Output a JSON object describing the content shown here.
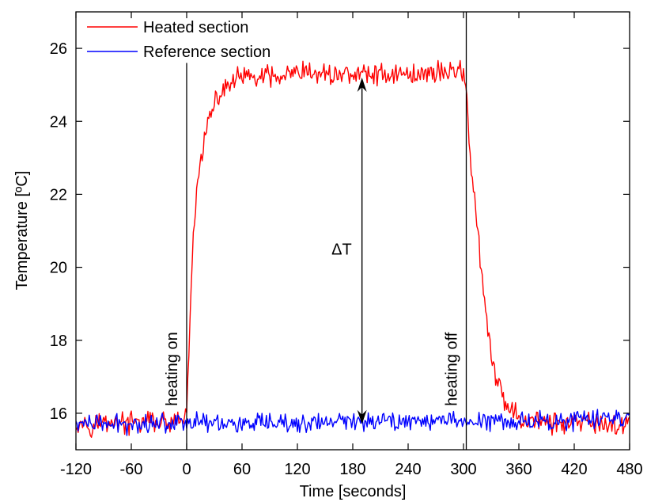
{
  "chart_data": {
    "type": "line",
    "title": "",
    "xlabel": "Time [seconds]",
    "ylabel": "Temperature [ºC]",
    "xlim": [
      -120,
      480
    ],
    "ylim": [
      15,
      27
    ],
    "xticks": [
      "-120",
      "-60",
      "0",
      "60",
      "120",
      "180",
      "240",
      "300",
      "360",
      "420",
      "480"
    ],
    "yticks": [
      "16",
      "18",
      "20",
      "22",
      "24",
      "26"
    ],
    "grid": false,
    "legend_position": "top-left",
    "series": [
      {
        "name": "Heated section",
        "color": "#ff0000",
        "points": [
          [
            -120,
            15.8
          ],
          [
            -100,
            15.7
          ],
          [
            -80,
            15.8
          ],
          [
            -60,
            15.7
          ],
          [
            -40,
            15.8
          ],
          [
            -20,
            15.7
          ],
          [
            -2,
            15.8
          ],
          [
            0,
            16.1
          ],
          [
            2,
            17.5
          ],
          [
            5,
            19.5
          ],
          [
            8,
            21.0
          ],
          [
            10,
            21.8
          ],
          [
            13,
            22.5
          ],
          [
            16,
            23.1
          ],
          [
            20,
            23.6
          ],
          [
            25,
            24.1
          ],
          [
            30,
            24.4
          ],
          [
            35,
            24.7
          ],
          [
            40,
            24.9
          ],
          [
            50,
            25.1
          ],
          [
            60,
            25.2
          ],
          [
            80,
            25.2
          ],
          [
            100,
            25.2
          ],
          [
            120,
            25.3
          ],
          [
            140,
            25.3
          ],
          [
            160,
            25.3
          ],
          [
            180,
            25.3
          ],
          [
            200,
            25.3
          ],
          [
            220,
            25.3
          ],
          [
            240,
            25.3
          ],
          [
            260,
            25.3
          ],
          [
            280,
            25.4
          ],
          [
            300,
            25.4
          ],
          [
            303,
            25.0
          ],
          [
            305,
            24.0
          ],
          [
            308,
            22.8
          ],
          [
            312,
            21.8
          ],
          [
            315,
            21.0
          ],
          [
            318,
            20.2
          ],
          [
            322,
            19.2
          ],
          [
            326,
            18.3
          ],
          [
            330,
            17.6
          ],
          [
            335,
            17.0
          ],
          [
            340,
            16.6
          ],
          [
            345,
            16.3
          ],
          [
            350,
            16.1
          ],
          [
            360,
            15.9
          ],
          [
            380,
            15.8
          ],
          [
            400,
            15.7
          ],
          [
            420,
            15.7
          ],
          [
            440,
            15.7
          ],
          [
            460,
            15.7
          ],
          [
            480,
            15.7
          ]
        ]
      },
      {
        "name": "Reference section",
        "color": "#0000ff",
        "points": [
          [
            -120,
            15.7
          ],
          [
            -60,
            15.7
          ],
          [
            0,
            15.8
          ],
          [
            60,
            15.7
          ],
          [
            120,
            15.7
          ],
          [
            180,
            15.8
          ],
          [
            240,
            15.8
          ],
          [
            300,
            15.8
          ],
          [
            360,
            15.8
          ],
          [
            420,
            15.8
          ],
          [
            480,
            15.9
          ]
        ]
      }
    ],
    "vlines": [
      {
        "x": 0,
        "label": "heating on"
      },
      {
        "x": 303,
        "label": "heating off"
      }
    ],
    "arrow": {
      "x": 190,
      "y_top": 25.2,
      "y_bottom": 15.7,
      "label": "ΔT"
    }
  }
}
